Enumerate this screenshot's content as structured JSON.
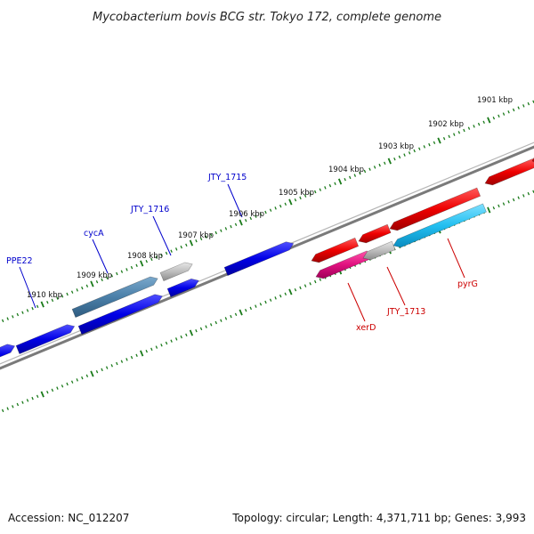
{
  "title": "Mycobacterium bovis BCG str. Tokyo 172, complete genome",
  "footer": {
    "accession": "Accession: NC_012207",
    "summary": "Topology: circular; Length: 4,371,711 bp; Genes: 3,993"
  },
  "colors": {
    "backbone": "#808080",
    "tick": "#1a7a1a",
    "forward_gene": "#0000e0",
    "reverse_gene": "#ee0000",
    "hypothetical_gene": "#b9b9b9",
    "cycA_gene": "#4a7fa8",
    "xerD_gene": "#e0117f",
    "pyrG_gene": "#22bff0",
    "forward_label": "#0000cc",
    "reverse_label": "#cc0000"
  },
  "kbp_labels": [
    "1901 kbp",
    "1902 kbp",
    "1903 kbp",
    "1904 kbp",
    "1905 kbp",
    "1906 kbp",
    "1907 kbp",
    "1908 kbp",
    "1909 kbp",
    "1910 kbp"
  ],
  "gene_labels_forward": [
    "PPE22",
    "cycA",
    "JTY_1716",
    "JTY_1715"
  ],
  "gene_labels_reverse": [
    "xerD",
    "JTY_1713",
    "pyrG"
  ]
}
